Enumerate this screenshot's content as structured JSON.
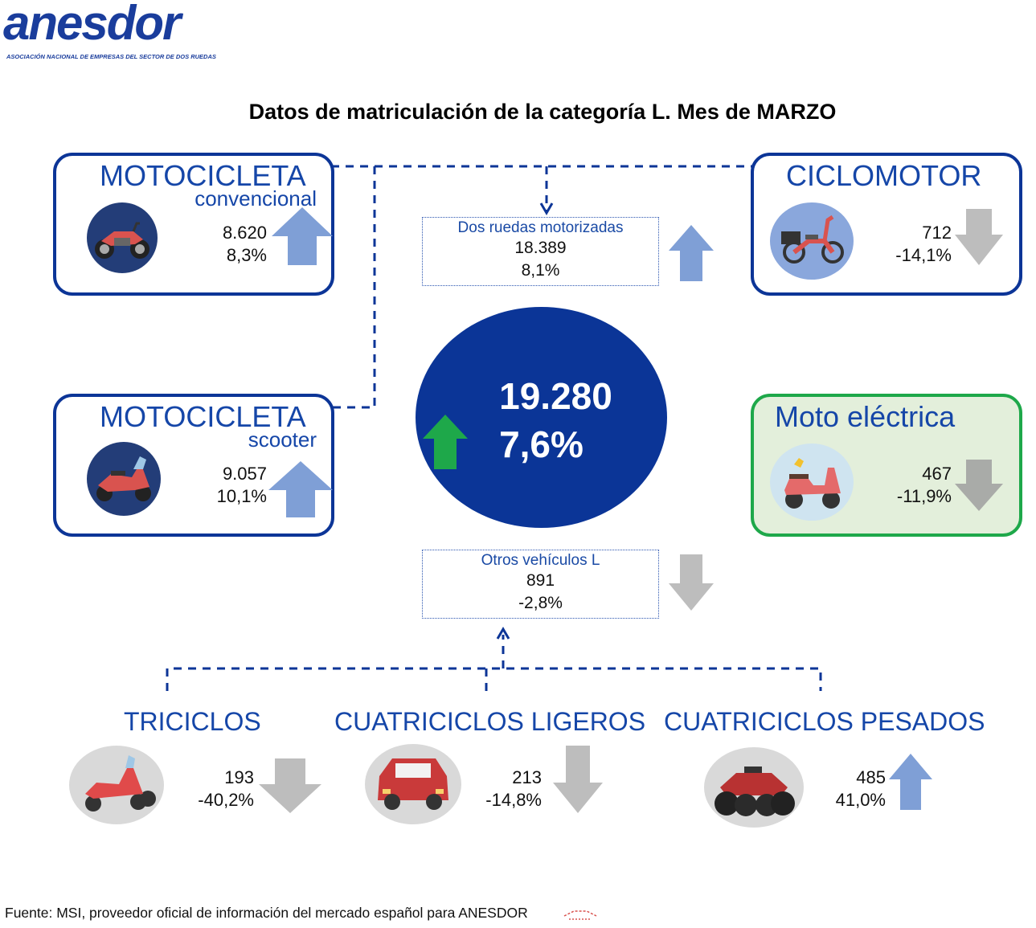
{
  "logo": {
    "word": "anesdor",
    "tagline": "ASOCIACIÓN NACIONAL DE EMPRESAS DEL SECTOR DE DOS RUEDAS"
  },
  "title": "Datos de matriculación de la categoría L. Mes de MARZO",
  "cards": {
    "moto_convencional": {
      "title": "MOTOCICLETA",
      "subtitle": "convencional",
      "units": "8.620",
      "change": "8,3%",
      "trend": "up",
      "icon": "motorcycle-icon"
    },
    "moto_scooter": {
      "title": "MOTOCICLETA",
      "subtitle": "scooter",
      "units": "9.057",
      "change": "10,1%",
      "trend": "up",
      "icon": "scooter-icon"
    },
    "ciclomotor": {
      "title": "CICLOMOTOR",
      "units": "712",
      "change": "-14,1%",
      "trend": "down",
      "icon": "moped-icon"
    },
    "moto_electrica": {
      "title": "Moto eléctrica",
      "units": "467",
      "change": "-11,9%",
      "trend": "down",
      "icon": "electric-scooter-icon"
    }
  },
  "dos_ruedas": {
    "label": "Dos ruedas motorizadas",
    "units": "18.389",
    "change": "8,1%",
    "trend": "up"
  },
  "total": {
    "units": "19.280",
    "change": "7,6%",
    "trend": "up"
  },
  "otros": {
    "label": "Otros vehículos L",
    "units": "891",
    "change": "-2,8%",
    "trend": "down"
  },
  "bottom": {
    "triciclos": {
      "title": "TRICICLOS",
      "units": "193",
      "change": "-40,2%",
      "trend": "down",
      "icon": "trike-icon"
    },
    "cuatri_ligeros": {
      "title": "CUATRICICLOS LIGEROS",
      "units": "213",
      "change": "-14,8%",
      "trend": "down",
      "icon": "microcar-icon"
    },
    "cuatri_pesados": {
      "title": "CUATRICICLOS PESADOS",
      "units": "485",
      "change": "41,0%",
      "trend": "up",
      "icon": "quad-icon"
    }
  },
  "footer": "Fuente: MSI, proveedor oficial de información del mercado español para ANESDOR",
  "colors": {
    "navy": "#0b3597",
    "title_blue": "#1546a8",
    "arrow_up": "#7f9fd6",
    "arrow_down": "#bdbdbd",
    "arrow_green": "#1ea84a",
    "green_border": "#1ea84a"
  }
}
